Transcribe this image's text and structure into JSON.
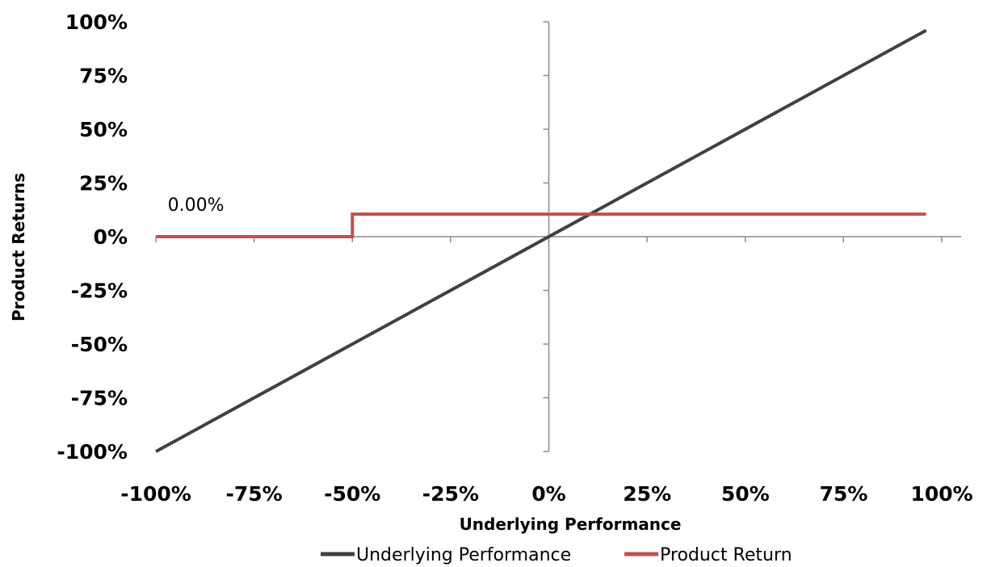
{
  "chart_data": {
    "type": "line",
    "xlabel": "Underlying Performance",
    "ylabel": "Product Returns",
    "xlim": [
      -100,
      100
    ],
    "ylim": [
      -100,
      100
    ],
    "x_ticks": [
      "-100%",
      "-75%",
      "-50%",
      "-25%",
      "0%",
      "25%",
      "50%",
      "75%",
      "100%"
    ],
    "y_ticks": [
      "100%",
      "75%",
      "50%",
      "25%",
      "0%",
      "-25%",
      "-50%",
      "-75%",
      "-100%"
    ],
    "series": [
      {
        "name": "Underlying Performance",
        "color": "#404040",
        "x": [
          -100,
          96
        ],
        "y": [
          -100,
          96
        ]
      },
      {
        "name": "Product Return",
        "color": "#c0504d",
        "x": [
          -100,
          -50,
          -50,
          96
        ],
        "y": [
          0,
          0,
          10.5,
          10.5
        ]
      }
    ],
    "annotations": [
      {
        "text": "0.00%",
        "x": -97,
        "y": 12
      }
    ],
    "legend": "bottom",
    "grid": false
  }
}
